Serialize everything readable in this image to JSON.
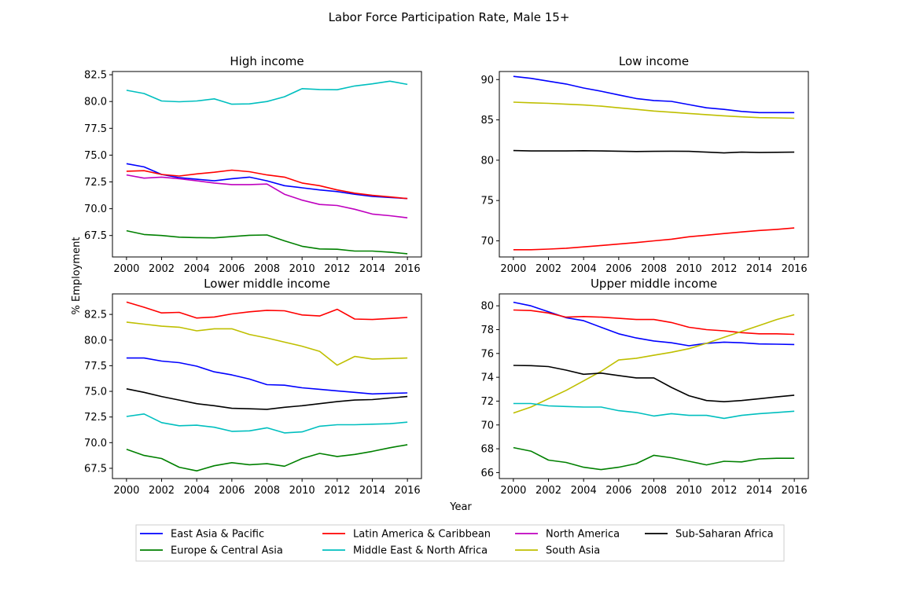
{
  "suptitle": "Labor Force Participation Rate, Male 15+",
  "ylabel": "% Employment",
  "xlabel": "Year",
  "colors": {
    "East Asia & Pacific": "#0000ff",
    "Europe & Central Asia": "#008000",
    "Latin America & Caribbean": "#ff0000",
    "Middle East & North Africa": "#00bfbf",
    "North America": "#bf00bf",
    "South Asia": "#bfbf00",
    "Sub-Saharan Africa": "#000000"
  },
  "legend": {
    "placement": "bottom-center",
    "entries": [
      "East Asia & Pacific",
      "Latin America & Caribbean",
      "North America",
      "Sub-Saharan Africa",
      "Europe & Central Asia",
      "Middle East & North Africa",
      "South Asia"
    ]
  },
  "chart_data": [
    {
      "type": "line",
      "title": "High income",
      "x": [
        2000,
        2001,
        2002,
        2003,
        2004,
        2005,
        2006,
        2007,
        2008,
        2009,
        2010,
        2011,
        2012,
        2013,
        2014,
        2015,
        2016
      ],
      "xticks": [
        2000,
        2002,
        2004,
        2006,
        2008,
        2010,
        2012,
        2014,
        2016
      ],
      "xlim": [
        1999.2,
        2016.8
      ],
      "ylim": [
        65.5,
        82.8
      ],
      "yticks": [
        67.5,
        70.0,
        72.5,
        75.0,
        77.5,
        80.0,
        82.5
      ],
      "ytick_labels": [
        "67.5",
        "70.0",
        "72.5",
        "75.0",
        "77.5",
        "80.0",
        "82.5"
      ],
      "series": [
        {
          "name": "Middle East & North Africa",
          "values": [
            81.05,
            80.75,
            80.05,
            79.98,
            80.05,
            80.25,
            79.75,
            79.78,
            80.0,
            80.45,
            81.2,
            81.12,
            81.1,
            81.45,
            81.65,
            81.9,
            81.6
          ]
        },
        {
          "name": "East Asia & Pacific",
          "values": [
            74.2,
            73.9,
            73.2,
            72.9,
            72.75,
            72.6,
            72.8,
            72.95,
            72.6,
            72.15,
            71.95,
            71.75,
            71.6,
            71.35,
            71.15,
            71.05,
            70.95
          ]
        },
        {
          "name": "Latin America & Caribbean",
          "values": [
            73.5,
            73.55,
            73.2,
            73.05,
            73.25,
            73.4,
            73.6,
            73.45,
            73.15,
            72.95,
            72.4,
            72.15,
            71.75,
            71.45,
            71.25,
            71.1,
            70.95
          ]
        },
        {
          "name": "North America",
          "values": [
            73.15,
            72.85,
            72.95,
            72.8,
            72.6,
            72.4,
            72.25,
            72.25,
            72.3,
            71.35,
            70.8,
            70.4,
            70.3,
            69.95,
            69.5,
            69.35,
            69.15
          ]
        },
        {
          "name": "Europe & Central Asia",
          "values": [
            67.95,
            67.6,
            67.5,
            67.35,
            67.3,
            67.28,
            67.4,
            67.52,
            67.55,
            67.0,
            66.5,
            66.25,
            66.22,
            66.05,
            66.05,
            65.95,
            65.8
          ]
        }
      ]
    },
    {
      "type": "line",
      "title": "Low income",
      "x": [
        2000,
        2001,
        2002,
        2003,
        2004,
        2005,
        2006,
        2007,
        2008,
        2009,
        2010,
        2011,
        2012,
        2013,
        2014,
        2015,
        2016
      ],
      "xticks": [
        2000,
        2002,
        2004,
        2006,
        2008,
        2010,
        2012,
        2014,
        2016
      ],
      "xlim": [
        1999.2,
        2016.8
      ],
      "ylim": [
        68.0,
        91.0
      ],
      "yticks": [
        70,
        75,
        80,
        85,
        90
      ],
      "ytick_labels": [
        "70",
        "75",
        "80",
        "85",
        "90"
      ],
      "series": [
        {
          "name": "East Asia & Pacific",
          "values": [
            90.4,
            90.15,
            89.8,
            89.45,
            88.95,
            88.55,
            88.1,
            87.65,
            87.4,
            87.3,
            86.9,
            86.5,
            86.3,
            86.05,
            85.9,
            85.9,
            85.9
          ]
        },
        {
          "name": "South Asia",
          "values": [
            87.2,
            87.12,
            87.05,
            86.95,
            86.85,
            86.7,
            86.5,
            86.3,
            86.1,
            85.95,
            85.8,
            85.65,
            85.5,
            85.38,
            85.28,
            85.25,
            85.2
          ]
        },
        {
          "name": "Sub-Saharan Africa",
          "values": [
            81.2,
            81.15,
            81.15,
            81.15,
            81.18,
            81.15,
            81.12,
            81.08,
            81.1,
            81.12,
            81.1,
            81.0,
            80.9,
            81.0,
            80.95,
            80.98,
            81.0
          ]
        },
        {
          "name": "Latin America & Caribbean",
          "values": [
            68.9,
            68.9,
            68.97,
            69.08,
            69.25,
            69.42,
            69.6,
            69.78,
            70.0,
            70.2,
            70.5,
            70.7,
            70.9,
            71.1,
            71.28,
            71.42,
            71.6
          ]
        }
      ]
    },
    {
      "type": "line",
      "title": "Lower middle income",
      "x": [
        2000,
        2001,
        2002,
        2003,
        2004,
        2005,
        2006,
        2007,
        2008,
        2009,
        2010,
        2011,
        2012,
        2013,
        2014,
        2015,
        2016
      ],
      "xticks": [
        2000,
        2002,
        2004,
        2006,
        2008,
        2010,
        2012,
        2014,
        2016
      ],
      "xlim": [
        1999.2,
        2016.8
      ],
      "ylim": [
        66.5,
        84.5
      ],
      "yticks": [
        67.5,
        70.0,
        72.5,
        75.0,
        77.5,
        80.0,
        82.5
      ],
      "ytick_labels": [
        "67.5",
        "70.0",
        "72.5",
        "75.0",
        "77.5",
        "80.0",
        "82.5"
      ],
      "series": [
        {
          "name": "Latin America & Caribbean",
          "values": [
            83.7,
            83.2,
            82.65,
            82.7,
            82.15,
            82.25,
            82.55,
            82.75,
            82.9,
            82.85,
            82.45,
            82.35,
            83.0,
            82.05,
            82.0,
            82.1,
            82.2
          ]
        },
        {
          "name": "South Asia",
          "values": [
            81.75,
            81.55,
            81.35,
            81.25,
            80.9,
            81.1,
            81.1,
            80.55,
            80.2,
            79.8,
            79.4,
            78.9,
            77.55,
            78.4,
            78.15,
            78.2,
            78.25
          ]
        },
        {
          "name": "East Asia & Pacific",
          "values": [
            78.25,
            78.25,
            77.95,
            77.8,
            77.45,
            76.9,
            76.6,
            76.2,
            75.65,
            75.6,
            75.35,
            75.2,
            75.05,
            74.9,
            74.75,
            74.8,
            74.85
          ]
        },
        {
          "name": "Sub-Saharan Africa",
          "values": [
            75.25,
            74.9,
            74.5,
            74.15,
            73.8,
            73.6,
            73.35,
            73.3,
            73.25,
            73.45,
            73.6,
            73.8,
            74.0,
            74.15,
            74.2,
            74.35,
            74.5
          ]
        },
        {
          "name": "Middle East & North Africa",
          "values": [
            72.55,
            72.8,
            71.95,
            71.65,
            71.7,
            71.5,
            71.1,
            71.15,
            71.45,
            70.95,
            71.05,
            71.6,
            71.75,
            71.75,
            71.8,
            71.85,
            72.0
          ]
        },
        {
          "name": "Europe & Central Asia",
          "values": [
            69.35,
            68.75,
            68.45,
            67.6,
            67.25,
            67.75,
            68.05,
            67.85,
            67.95,
            67.7,
            68.45,
            68.95,
            68.65,
            68.85,
            69.15,
            69.5,
            69.8
          ]
        }
      ]
    },
    {
      "type": "line",
      "title": "Upper middle income",
      "x": [
        2000,
        2001,
        2002,
        2003,
        2004,
        2005,
        2006,
        2007,
        2008,
        2009,
        2010,
        2011,
        2012,
        2013,
        2014,
        2015,
        2016
      ],
      "xticks": [
        2000,
        2002,
        2004,
        2006,
        2008,
        2010,
        2012,
        2014,
        2016
      ],
      "xlim": [
        1999.2,
        2016.8
      ],
      "ylim": [
        65.5,
        81.0
      ],
      "yticks": [
        66,
        68,
        70,
        72,
        74,
        76,
        78,
        80
      ],
      "ytick_labels": [
        "66",
        "68",
        "70",
        "72",
        "74",
        "76",
        "78",
        "80"
      ],
      "series": [
        {
          "name": "East Asia & Pacific",
          "values": [
            80.3,
            80.0,
            79.5,
            79.0,
            78.75,
            78.2,
            77.65,
            77.3,
            77.05,
            76.9,
            76.65,
            76.85,
            76.95,
            76.9,
            76.8,
            76.78,
            76.75
          ]
        },
        {
          "name": "Latin America & Caribbean",
          "values": [
            79.65,
            79.6,
            79.4,
            79.05,
            79.1,
            79.05,
            78.95,
            78.85,
            78.85,
            78.6,
            78.2,
            78.0,
            77.9,
            77.75,
            77.65,
            77.65,
            77.6
          ]
        },
        {
          "name": "South Asia",
          "values": [
            71.0,
            71.5,
            72.2,
            72.9,
            73.7,
            74.5,
            75.45,
            75.6,
            75.85,
            76.1,
            76.4,
            76.85,
            77.35,
            77.85,
            78.35,
            78.85,
            79.25
          ]
        },
        {
          "name": "Sub-Saharan Africa",
          "values": [
            75.0,
            74.98,
            74.9,
            74.6,
            74.25,
            74.35,
            74.15,
            73.95,
            73.95,
            73.15,
            72.45,
            72.05,
            71.95,
            72.05,
            72.2,
            72.35,
            72.5
          ]
        },
        {
          "name": "Middle East & North Africa",
          "values": [
            71.8,
            71.8,
            71.6,
            71.55,
            71.5,
            71.5,
            71.2,
            71.05,
            70.75,
            70.95,
            70.8,
            70.8,
            70.55,
            70.8,
            70.95,
            71.05,
            71.15
          ]
        },
        {
          "name": "Europe & Central Asia",
          "values": [
            68.1,
            67.8,
            67.05,
            66.85,
            66.45,
            66.25,
            66.45,
            66.75,
            67.45,
            67.25,
            66.95,
            66.65,
            66.95,
            66.9,
            67.15,
            67.2,
            67.2
          ]
        }
      ]
    }
  ]
}
